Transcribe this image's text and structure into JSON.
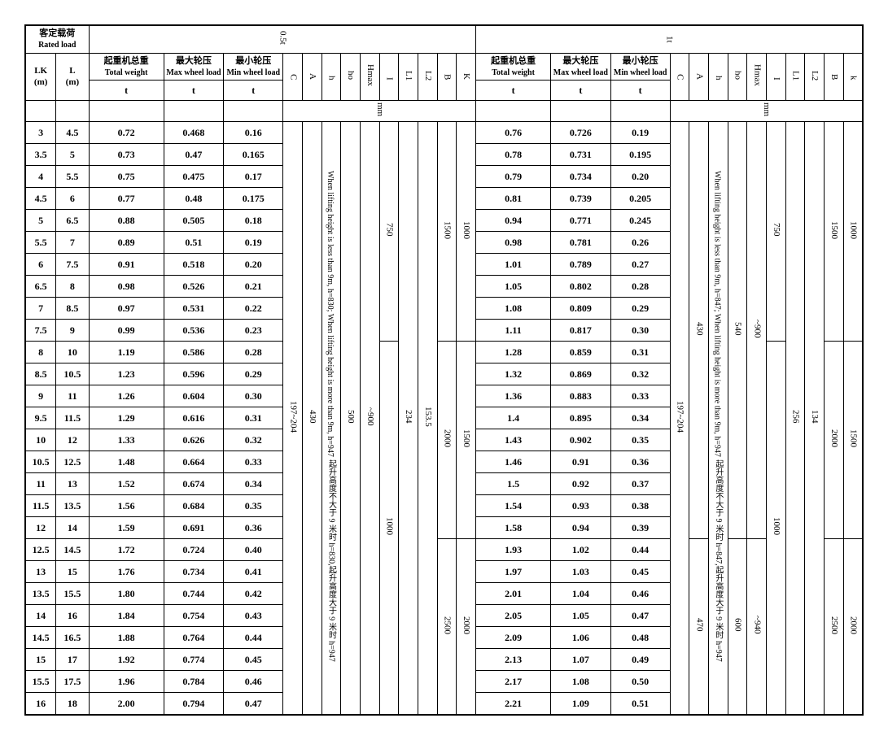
{
  "header": {
    "rated_load_cn": "客定载荷",
    "rated_load_en": "Rated load",
    "load1": "0.5t",
    "load2": "1t",
    "LK": "LK",
    "LK_unit": "(m)",
    "L": "L",
    "L_unit": "(m)",
    "total_weight_cn": "起重机总重",
    "total_weight_en": "Total weight",
    "max_wheel_cn": "最大轮压",
    "max_wheel_en": "Max wheel load",
    "min_wheel_cn": "最小轮压",
    "min_wheel_en": "Min wheel load",
    "C": "C",
    "A": "A",
    "h": "h",
    "ho": "ho",
    "Hmax": "Hmax",
    "I": "I",
    "L1": "L1",
    "L2": "L2",
    "B": "B",
    "K": "K",
    "k": "k",
    "unit_t": "t",
    "unit_mm": "mm"
  },
  "rows": [
    {
      "lk": "3",
      "l": "4.5",
      "tw1": "0.72",
      "mx1": "0.468",
      "mn1": "0.16",
      "tw2": "0.76",
      "mx2": "0.726",
      "mn2": "0.19"
    },
    {
      "lk": "3.5",
      "l": "5",
      "tw1": "0.73",
      "mx1": "0.47",
      "mn1": "0.165",
      "tw2": "0.78",
      "mx2": "0.731",
      "mn2": "0.195"
    },
    {
      "lk": "4",
      "l": "5.5",
      "tw1": "0.75",
      "mx1": "0.475",
      "mn1": "0.17",
      "tw2": "0.79",
      "mx2": "0.734",
      "mn2": "0.20"
    },
    {
      "lk": "4.5",
      "l": "6",
      "tw1": "0.77",
      "mx1": "0.48",
      "mn1": "0.175",
      "tw2": "0.81",
      "mx2": "0.739",
      "mn2": "0.205"
    },
    {
      "lk": "5",
      "l": "6.5",
      "tw1": "0.88",
      "mx1": "0.505",
      "mn1": "0.18",
      "tw2": "0.94",
      "mx2": "0.771",
      "mn2": "0.245"
    },
    {
      "lk": "5.5",
      "l": "7",
      "tw1": "0.89",
      "mx1": "0.51",
      "mn1": "0.19",
      "tw2": "0.98",
      "mx2": "0.781",
      "mn2": "0.26"
    },
    {
      "lk": "6",
      "l": "7.5",
      "tw1": "0.91",
      "mx1": "0.518",
      "mn1": "0.20",
      "tw2": "1.01",
      "mx2": "0.789",
      "mn2": "0.27"
    },
    {
      "lk": "6.5",
      "l": "8",
      "tw1": "0.98",
      "mx1": "0.526",
      "mn1": "0.21",
      "tw2": "1.05",
      "mx2": "0.802",
      "mn2": "0.28"
    },
    {
      "lk": "7",
      "l": "8.5",
      "tw1": "0.97",
      "mx1": "0.531",
      "mn1": "0.22",
      "tw2": "1.08",
      "mx2": "0.809",
      "mn2": "0.29"
    },
    {
      "lk": "7.5",
      "l": "9",
      "tw1": "0.99",
      "mx1": "0.536",
      "mn1": "0.23",
      "tw2": "1.11",
      "mx2": "0.817",
      "mn2": "0.30"
    },
    {
      "lk": "8",
      "l": "10",
      "tw1": "1.19",
      "mx1": "0.586",
      "mn1": "0.28",
      "tw2": "1.28",
      "mx2": "0.859",
      "mn2": "0.31"
    },
    {
      "lk": "8.5",
      "l": "10.5",
      "tw1": "1.23",
      "mx1": "0.596",
      "mn1": "0.29",
      "tw2": "1.32",
      "mx2": "0.869",
      "mn2": "0.32"
    },
    {
      "lk": "9",
      "l": "11",
      "tw1": "1.26",
      "mx1": "0.604",
      "mn1": "0.30",
      "tw2": "1.36",
      "mx2": "0.883",
      "mn2": "0.33"
    },
    {
      "lk": "9.5",
      "l": "11.5",
      "tw1": "1.29",
      "mx1": "0.616",
      "mn1": "0.31",
      "tw2": "1.4",
      "mx2": "0.895",
      "mn2": "0.34"
    },
    {
      "lk": "10",
      "l": "12",
      "tw1": "1.33",
      "mx1": "0.626",
      "mn1": "0.32",
      "tw2": "1.43",
      "mx2": "0.902",
      "mn2": "0.35"
    },
    {
      "lk": "10.5",
      "l": "12.5",
      "tw1": "1.48",
      "mx1": "0.664",
      "mn1": "0.33",
      "tw2": "1.46",
      "mx2": "0.91",
      "mn2": "0.36"
    },
    {
      "lk": "11",
      "l": "13",
      "tw1": "1.52",
      "mx1": "0.674",
      "mn1": "0.34",
      "tw2": "1.5",
      "mx2": "0.92",
      "mn2": "0.37"
    },
    {
      "lk": "11.5",
      "l": "13.5",
      "tw1": "1.56",
      "mx1": "0.684",
      "mn1": "0.35",
      "tw2": "1.54",
      "mx2": "0.93",
      "mn2": "0.38"
    },
    {
      "lk": "12",
      "l": "14",
      "tw1": "1.59",
      "mx1": "0.691",
      "mn1": "0.36",
      "tw2": "1.58",
      "mx2": "0.94",
      "mn2": "0.39"
    },
    {
      "lk": "12.5",
      "l": "14.5",
      "tw1": "1.72",
      "mx1": "0.724",
      "mn1": "0.40",
      "tw2": "1.93",
      "mx2": "1.02",
      "mn2": "0.44"
    },
    {
      "lk": "13",
      "l": "15",
      "tw1": "1.76",
      "mx1": "0.734",
      "mn1": "0.41",
      "tw2": "1.97",
      "mx2": "1.03",
      "mn2": "0.45"
    },
    {
      "lk": "13.5",
      "l": "15.5",
      "tw1": "1.80",
      "mx1": "0.744",
      "mn1": "0.42",
      "tw2": "2.01",
      "mx2": "1.04",
      "mn2": "0.46"
    },
    {
      "lk": "14",
      "l": "16",
      "tw1": "1.84",
      "mx1": "0.754",
      "mn1": "0.43",
      "tw2": "2.05",
      "mx2": "1.05",
      "mn2": "0.47"
    },
    {
      "lk": "14.5",
      "l": "16.5",
      "tw1": "1.88",
      "mx1": "0.764",
      "mn1": "0.44",
      "tw2": "2.09",
      "mx2": "1.06",
      "mn2": "0.48"
    },
    {
      "lk": "15",
      "l": "17",
      "tw1": "1.92",
      "mx1": "0.774",
      "mn1": "0.45",
      "tw2": "2.13",
      "mx2": "1.07",
      "mn2": "0.49"
    },
    {
      "lk": "15.5",
      "l": "17.5",
      "tw1": "1.96",
      "mx1": "0.784",
      "mn1": "0.46",
      "tw2": "2.17",
      "mx2": "1.08",
      "mn2": "0.50"
    },
    {
      "lk": "16",
      "l": "18",
      "tw1": "2.00",
      "mx1": "0.794",
      "mn1": "0.47",
      "tw2": "2.21",
      "mx2": "1.09",
      "mn2": "0.51"
    }
  ],
  "spans1": {
    "C": "197~204",
    "A": "430",
    "h_note": "起升高度不大于 9 米时 h=830,起升高度大于 9 米时 h=947",
    "h_note_en": "When lifting height is less than 9m, h=830; When lifting height is more than 9m, h=947",
    "ho": "500",
    "Hmax": "~900",
    "I_top": "750",
    "I_bot": "1000",
    "L1": "234",
    "L2": "153.5",
    "B_top": "1500",
    "B_mid": "2000",
    "B_bot": "2500",
    "K_top": "1000",
    "K_mid": "1500",
    "K_bot": "2000"
  },
  "spans2": {
    "C": "197~204",
    "A_top": "430",
    "A_bot": "470",
    "h_note": "起升高度不大于 9 米时 h=847,起升高度大于 9 米时 h=947",
    "h_note_en": "When lifting height is less than 9m, h=847; When lifting height is more than 9m, h=947",
    "ho_top": "540",
    "ho_bot": "600",
    "Hmax_top": "~900",
    "Hmax_bot": "~940",
    "I_top": "750",
    "I_bot": "1000",
    "L1": "256",
    "L2": "134",
    "B_top": "1500",
    "B_mid": "2000",
    "B_bot": "2500",
    "K_top": "1000",
    "K_mid": "1500",
    "K_bot": "2000"
  },
  "style": {
    "font_family": "Times New Roman, serif",
    "border_color": "#000000",
    "background": "#ffffff",
    "col_widths": {
      "lk": 32,
      "l": 34,
      "tw": 78,
      "mx": 62,
      "mn": 62,
      "narrow": 20
    }
  }
}
